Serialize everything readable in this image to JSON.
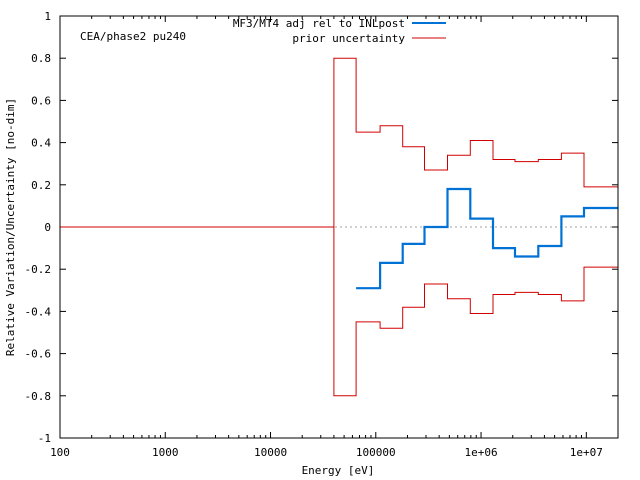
{
  "chart_data": {
    "type": "line",
    "title": "",
    "annotation": "CEA/phase2 pu240",
    "xlabel": "Energy [eV]",
    "ylabel": "Relative Variation/Uncertainty [no-dim]",
    "xscale": "log",
    "xlim": [
      100,
      20000000
    ],
    "ylim": [
      -1,
      1
    ],
    "x_ticks": [
      {
        "value": 100,
        "label": "100"
      },
      {
        "value": 1000,
        "label": "1000"
      },
      {
        "value": 10000,
        "label": "10000"
      },
      {
        "value": 100000,
        "label": "100000"
      },
      {
        "value": 1000000,
        "label": "1e+06"
      },
      {
        "value": 10000000,
        "label": "1e+07"
      }
    ],
    "y_ticks": [
      {
        "value": 1,
        "label": "1"
      },
      {
        "value": 0.8,
        "label": "0.8"
      },
      {
        "value": 0.6,
        "label": "0.6"
      },
      {
        "value": 0.4,
        "label": "0.4"
      },
      {
        "value": 0.2,
        "label": "0.2"
      },
      {
        "value": 0,
        "label": "0"
      },
      {
        "value": -0.2,
        "label": "-0.2"
      },
      {
        "value": -0.4,
        "label": "-0.4"
      },
      {
        "value": -0.6,
        "label": "-0.6"
      },
      {
        "value": -0.8,
        "label": "-0.8"
      },
      {
        "value": -1,
        "label": "-1"
      }
    ],
    "zero_line": true,
    "legend_position": "top-right",
    "series": [
      {
        "name": "MF3/MT4 adj rel to INLpost",
        "color": "#0072d6",
        "style": "step",
        "edges": [
          65000,
          110000,
          180000,
          290000,
          480000,
          790000,
          1300000,
          2100000,
          3500000,
          5800000,
          9500000,
          20000000
        ],
        "values": [
          -0.29,
          -0.17,
          -0.08,
          0.0,
          0.18,
          0.04,
          -0.1,
          -0.14,
          -0.09,
          0.05,
          0.09
        ]
      },
      {
        "name": "prior uncertainty",
        "color": "#d10000",
        "style": "step",
        "mirrored": true,
        "edges": [
          100,
          40000,
          65000,
          110000,
          180000,
          290000,
          480000,
          790000,
          1300000,
          2100000,
          3500000,
          5800000,
          9500000,
          20000000
        ],
        "values": [
          0.0,
          0.8,
          0.45,
          0.48,
          0.38,
          0.27,
          0.34,
          0.41,
          0.32,
          0.31,
          0.32,
          0.35,
          0.19
        ]
      }
    ]
  }
}
